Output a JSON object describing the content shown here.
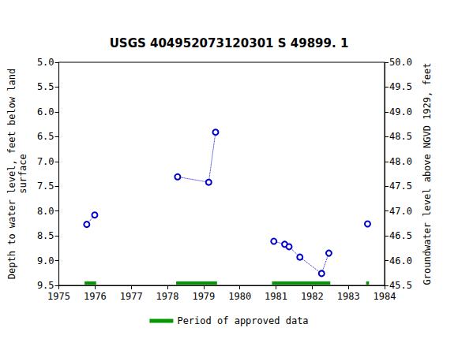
{
  "chart_data": {
    "type": "line",
    "title": "USGS 404952073120301 S 49899. 1",
    "y_label": "Depth to water level, feet below land\nsurface",
    "y2_label": "Groundwater level above NGVD 1929, feet",
    "xlim": [
      1975,
      1984
    ],
    "xticks": [
      1975,
      1976,
      1977,
      1978,
      1979,
      1980,
      1981,
      1982,
      1983,
      1984
    ],
    "ylim": [
      9.5,
      5
    ],
    "yticks": [
      {
        "value": 5,
        "label": "5.0"
      },
      5.5,
      {
        "value": 6,
        "label": "6.0"
      },
      6.5,
      {
        "value": 7,
        "label": "7.0"
      },
      7.5,
      {
        "value": 8,
        "label": "8.0"
      },
      8.5,
      {
        "value": 9,
        "label": "9.0"
      },
      9.5
    ],
    "y2lim": [
      45.5,
      50
    ],
    "y2ticks": [
      45.5,
      {
        "value": 46,
        "label": "46.0"
      },
      46.5,
      {
        "value": 47,
        "label": "47.0"
      },
      47.5,
      {
        "value": 48,
        "label": "48.0"
      },
      48.5,
      {
        "value": 49,
        "label": "49.0"
      },
      49.5,
      {
        "value": 50,
        "label": "50.0"
      }
    ],
    "grid": false,
    "legend": "bottom",
    "series": [
      {
        "color": "#0000cc",
        "marker": "circle",
        "line_style": "dotted",
        "x": [
          1975.77,
          1975.99
        ],
        "values": [
          8.27,
          8.08
        ]
      },
      {
        "color": "#0000cc",
        "marker": "circle",
        "line_style": "dotted",
        "x": [
          1978.28,
          1979.14,
          1979.33
        ],
        "values": [
          7.31,
          7.42,
          6.41
        ]
      },
      {
        "color": "#0000cc",
        "marker": "circle",
        "line_style": "dotted",
        "x": [
          1980.94,
          1981.24,
          1981.36,
          1981.66,
          1982.26,
          1982.46
        ],
        "values": [
          8.61,
          8.67,
          8.72,
          8.93,
          9.26,
          8.85
        ]
      },
      {
        "color": "#0000cc",
        "marker": "circle",
        "line_style": "dotted",
        "x": [
          1983.53
        ],
        "values": [
          8.26
        ]
      },
      {
        "name": "Period of approved data",
        "type": "span",
        "color": "#009900",
        "ranges": [
          [
            1975.71,
            1976.03
          ],
          [
            1978.24,
            1979.37
          ],
          [
            1980.89,
            1982.5
          ],
          [
            1983.49,
            1983.57
          ]
        ]
      }
    ]
  }
}
